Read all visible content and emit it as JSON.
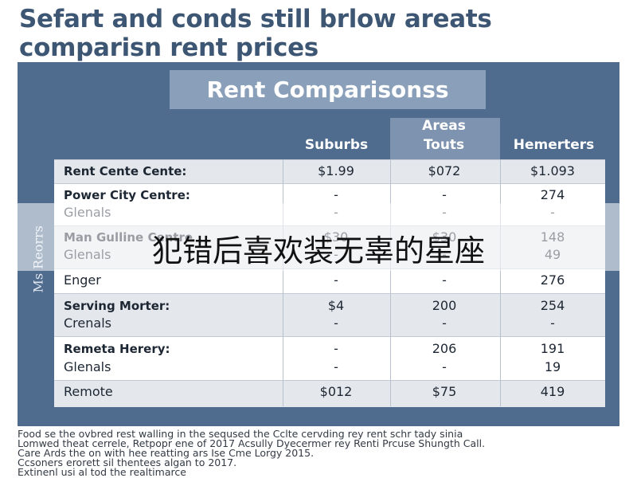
{
  "header": {
    "title": [
      "Sefart and conds still brlow areats",
      "comparisn rent prices"
    ]
  },
  "panel": {
    "title": "Rent Comparisonss",
    "side_label": "Ms Reorrs"
  },
  "table": {
    "columns": [
      [
        "Suburbs"
      ],
      [
        "Areas",
        "Touts"
      ],
      [
        "Hemerters"
      ]
    ],
    "rows": [
      [
        "Rent Cente Cente:",
        "$1.99",
        "$072",
        "$1.093"
      ],
      [
        "Power City Centre:",
        "-",
        "-",
        "274"
      ],
      [
        "Glenals",
        "-",
        "-",
        "-"
      ],
      [
        "Man Gulline Centre",
        "$30",
        "$30",
        "148"
      ],
      [
        "Glenals",
        "-",
        "-",
        "49"
      ],
      [
        "Enger",
        "-",
        "-",
        "276"
      ],
      [
        "Serving Morter:",
        "$4",
        "200",
        "254"
      ],
      [
        "Crenals",
        "-",
        "-",
        "-"
      ],
      [
        "Remeta Herery:",
        "-",
        "206",
        "191"
      ],
      [
        "Glenals",
        "-",
        "-",
        "19"
      ],
      [
        "Remote",
        "$012",
        "$75",
        "419"
      ]
    ]
  },
  "overlay": {
    "text": "犯错后喜欢装无辜的星座"
  },
  "footer": {
    "lines": [
      "Food se the ovbred rest walling in the seqused the Cclte cervding rey rent schr tady sinia",
      "Lomwed theat cerrele, Retpopr ene of 2017 Acsully Dyecermer rey Renti Prcuse Shungth Call.",
      "Care Ards the on with hee reatting ars Ise Cme Lorgy 2015.",
      "Ccsoners erorett sil thentees algan to 2017.",
      "Extinenl usi al tod the realtimarce"
    ]
  }
}
